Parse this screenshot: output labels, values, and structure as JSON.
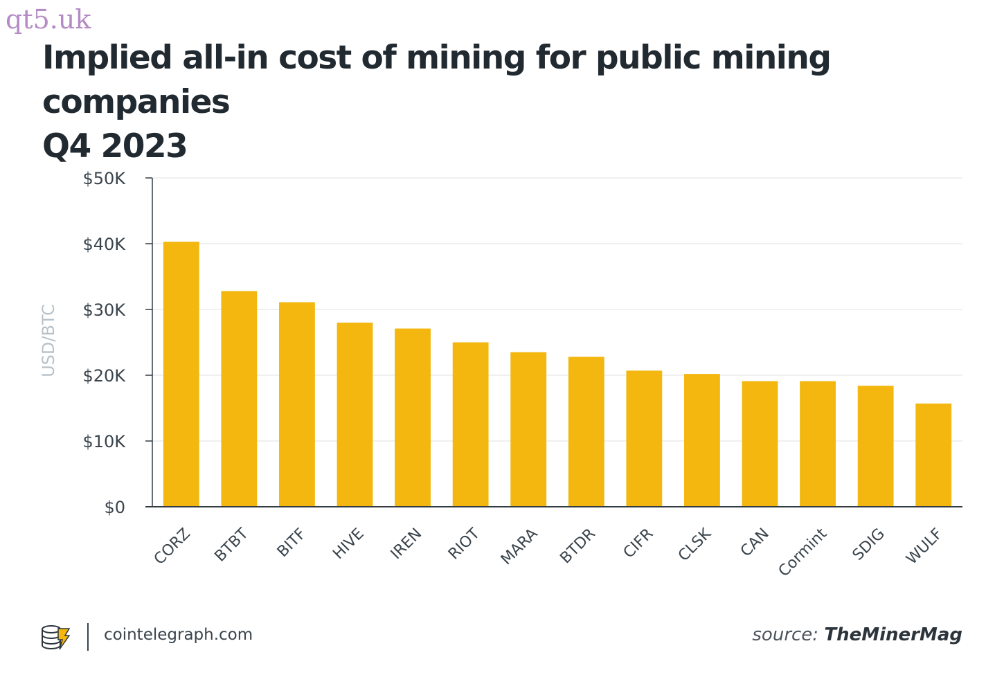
{
  "watermark": "qt5.uk",
  "header": {
    "title_line1": "Implied all-in cost of mining for public mining companies",
    "title_line2": "Q4 2023"
  },
  "footer": {
    "site": "cointelegraph.com",
    "source_prefix": "source:",
    "source_name": "TheMinerMag"
  },
  "colors": {
    "bar": "#f3b70f",
    "axis": "#333b42",
    "grid": "#ececec",
    "ylabel": "#b7c1c8"
  },
  "icons": {
    "logo": "cointelegraph-logo-icon"
  },
  "chart_data": {
    "type": "bar",
    "title": "Implied all-in cost of mining for public mining companies Q4 2023",
    "ylabel": "USD/BTC",
    "xlabel": "",
    "ylim": [
      0,
      50000
    ],
    "yticks": [
      0,
      10000,
      20000,
      30000,
      40000,
      50000
    ],
    "ytick_labels": [
      "$0",
      "$10K",
      "$20K",
      "$30K",
      "$40K",
      "$50K"
    ],
    "grid": true,
    "categories": [
      "CORZ",
      "BTBT",
      "BITF",
      "HIVE",
      "IREN",
      "RIOT",
      "MARA",
      "BTDR",
      "CIFR",
      "CLSK",
      "CAN",
      "Cormint",
      "SDIG",
      "WULF"
    ],
    "values": [
      40300,
      32800,
      31100,
      28000,
      27100,
      25000,
      23500,
      22800,
      20700,
      20200,
      19100,
      19100,
      18400,
      15700
    ]
  }
}
